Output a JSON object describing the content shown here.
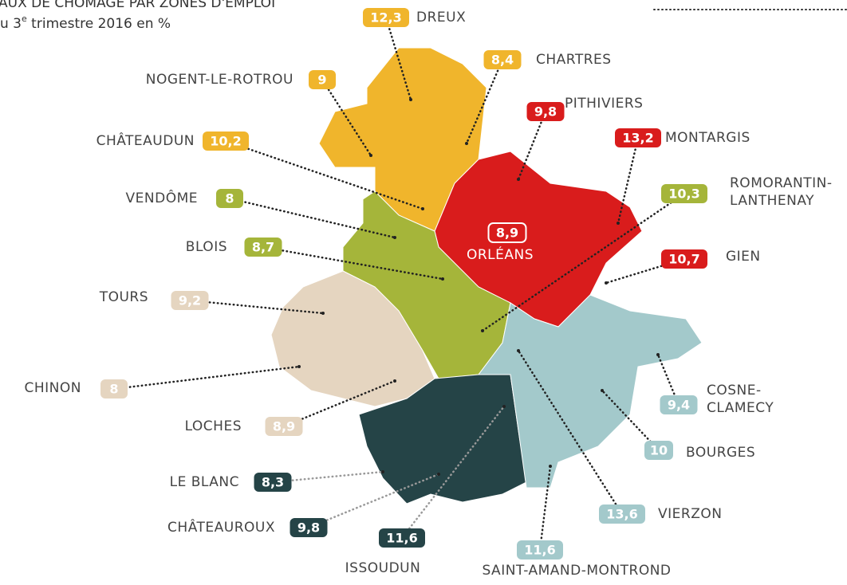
{
  "header": {
    "title": "AUX DE CHÔMAGE PAR ZONES D'EMPLOI",
    "subtitle": [
      "u 3",
      "e",
      " trimestre 2016 en %"
    ]
  },
  "zones": [
    {
      "name": [
        "DREUX"
      ],
      "value": "12,3",
      "color": "#f0b52c"
    },
    {
      "name": [
        "CHARTRES"
      ],
      "value": "8,4",
      "color": "#f0b52c"
    },
    {
      "name": [
        "NOGENT-LE-ROTROU"
      ],
      "value": "9",
      "color": "#f0b52c"
    },
    {
      "name": [
        "CHÂTEAUDUN"
      ],
      "value": "10,2",
      "color": "#f0b52c"
    },
    {
      "name": [
        "PITHIVIERS"
      ],
      "value": "9,8",
      "color": "#d91c1c"
    },
    {
      "name": [
        "MONTARGIS"
      ],
      "value": "13,2",
      "color": "#d91c1c"
    },
    {
      "name": [
        "ORLÉANS"
      ],
      "value": "8,9",
      "color": "#d91c1c"
    },
    {
      "name": [
        "GIEN"
      ],
      "value": "10,7",
      "color": "#d91c1c"
    },
    {
      "name": [
        "VENDÔME"
      ],
      "value": "8",
      "color": "#a5b53a"
    },
    {
      "name": [
        "BLOIS"
      ],
      "value": "8,7",
      "color": "#a5b53a"
    },
    {
      "name": [
        "ROMORANTIN-",
        "LANTHENAY"
      ],
      "value": "10,3",
      "color": "#a5b53a"
    },
    {
      "name": [
        "TOURS"
      ],
      "value": "9,2",
      "color": "#e5d5c0"
    },
    {
      "name": [
        "CHINON"
      ],
      "value": "8",
      "color": "#e5d5c0"
    },
    {
      "name": [
        "LOCHES"
      ],
      "value": "8,9",
      "color": "#e5d5c0"
    },
    {
      "name": [
        "LE BLANC"
      ],
      "value": "8,3",
      "color": "#254447"
    },
    {
      "name": [
        "CHÂTEAUROUX"
      ],
      "value": "9,8",
      "color": "#254447"
    },
    {
      "name": [
        "ISSOUDUN"
      ],
      "value": "11,6",
      "color": "#254447"
    },
    {
      "name": [
        "COSNE-",
        "CLAMECY"
      ],
      "value": "9,4",
      "color": "#a3c9cb"
    },
    {
      "name": [
        "BOURGES"
      ],
      "value": "10",
      "color": "#a3c9cb"
    },
    {
      "name": [
        "VIERZON"
      ],
      "value": "13,6",
      "color": "#a3c9cb"
    },
    {
      "name": [
        "SAINT-AMAND-MONTROND"
      ],
      "value": "11,6",
      "color": "#a3c9cb"
    }
  ]
}
